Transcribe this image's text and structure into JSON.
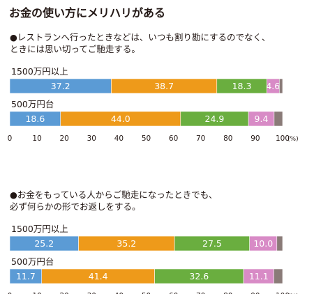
{
  "title": "お金の使い方にメリハリがある",
  "colors": [
    "#5b9bd5",
    "#ee9a1a",
    "#6aae3f",
    "#d88bc6",
    "#8a7b78"
  ],
  "axis": {
    "ticks": [
      "0",
      "10",
      "20",
      "30",
      "40",
      "50",
      "60",
      "70",
      "80",
      "90",
      "100"
    ],
    "unit": "(%)"
  },
  "chart_data": [
    {
      "type": "bar",
      "orientation": "horizontal",
      "stacked": true,
      "question": "●レストランへ行ったときなどは、いつも割り勘にするのでなく、ときには思い切ってご馳走する。",
      "question_lines": [
        "●レストランへ行ったときなどは、いつも割り勘にするのでなく、",
        "ときには思い切ってご馳走する。"
      ],
      "categories": [
        "1500万円以上",
        "500万円台"
      ],
      "series": [
        {
          "values": [
            37.2,
            18.6
          ]
        },
        {
          "values": [
            38.7,
            44.0
          ]
        },
        {
          "values": [
            18.3,
            24.9
          ]
        },
        {
          "values": [
            4.6,
            9.4
          ]
        },
        {
          "values": [
            1.2,
            3.1
          ]
        }
      ],
      "data_labels": [
        [
          "37.2",
          "38.7",
          "18.3",
          "4.6",
          ""
        ],
        [
          "18.6",
          "44.0",
          "24.9",
          "9.4",
          ""
        ]
      ],
      "xlim": [
        0,
        100
      ]
    },
    {
      "type": "bar",
      "orientation": "horizontal",
      "stacked": true,
      "question": "●お金をもっている人からご馳走になったときでも、必ず何らかの形でお返しをする。",
      "question_lines": [
        "●お金をもっている人からご馳走になったときでも、",
        "必ず何らかの形でお返しをする。"
      ],
      "categories": [
        "1500万円以上",
        "500万円台"
      ],
      "series": [
        {
          "values": [
            25.2,
            11.7
          ]
        },
        {
          "values": [
            35.2,
            41.4
          ]
        },
        {
          "values": [
            27.5,
            32.6
          ]
        },
        {
          "values": [
            10.0,
            11.1
          ]
        },
        {
          "values": [
            2.1,
            3.2
          ]
        }
      ],
      "data_labels": [
        [
          "25.2",
          "35.2",
          "27.5",
          "10.0",
          ""
        ],
        [
          "11.7",
          "41.4",
          "32.6",
          "11.1",
          ""
        ]
      ],
      "xlim": [
        0,
        100
      ]
    }
  ]
}
